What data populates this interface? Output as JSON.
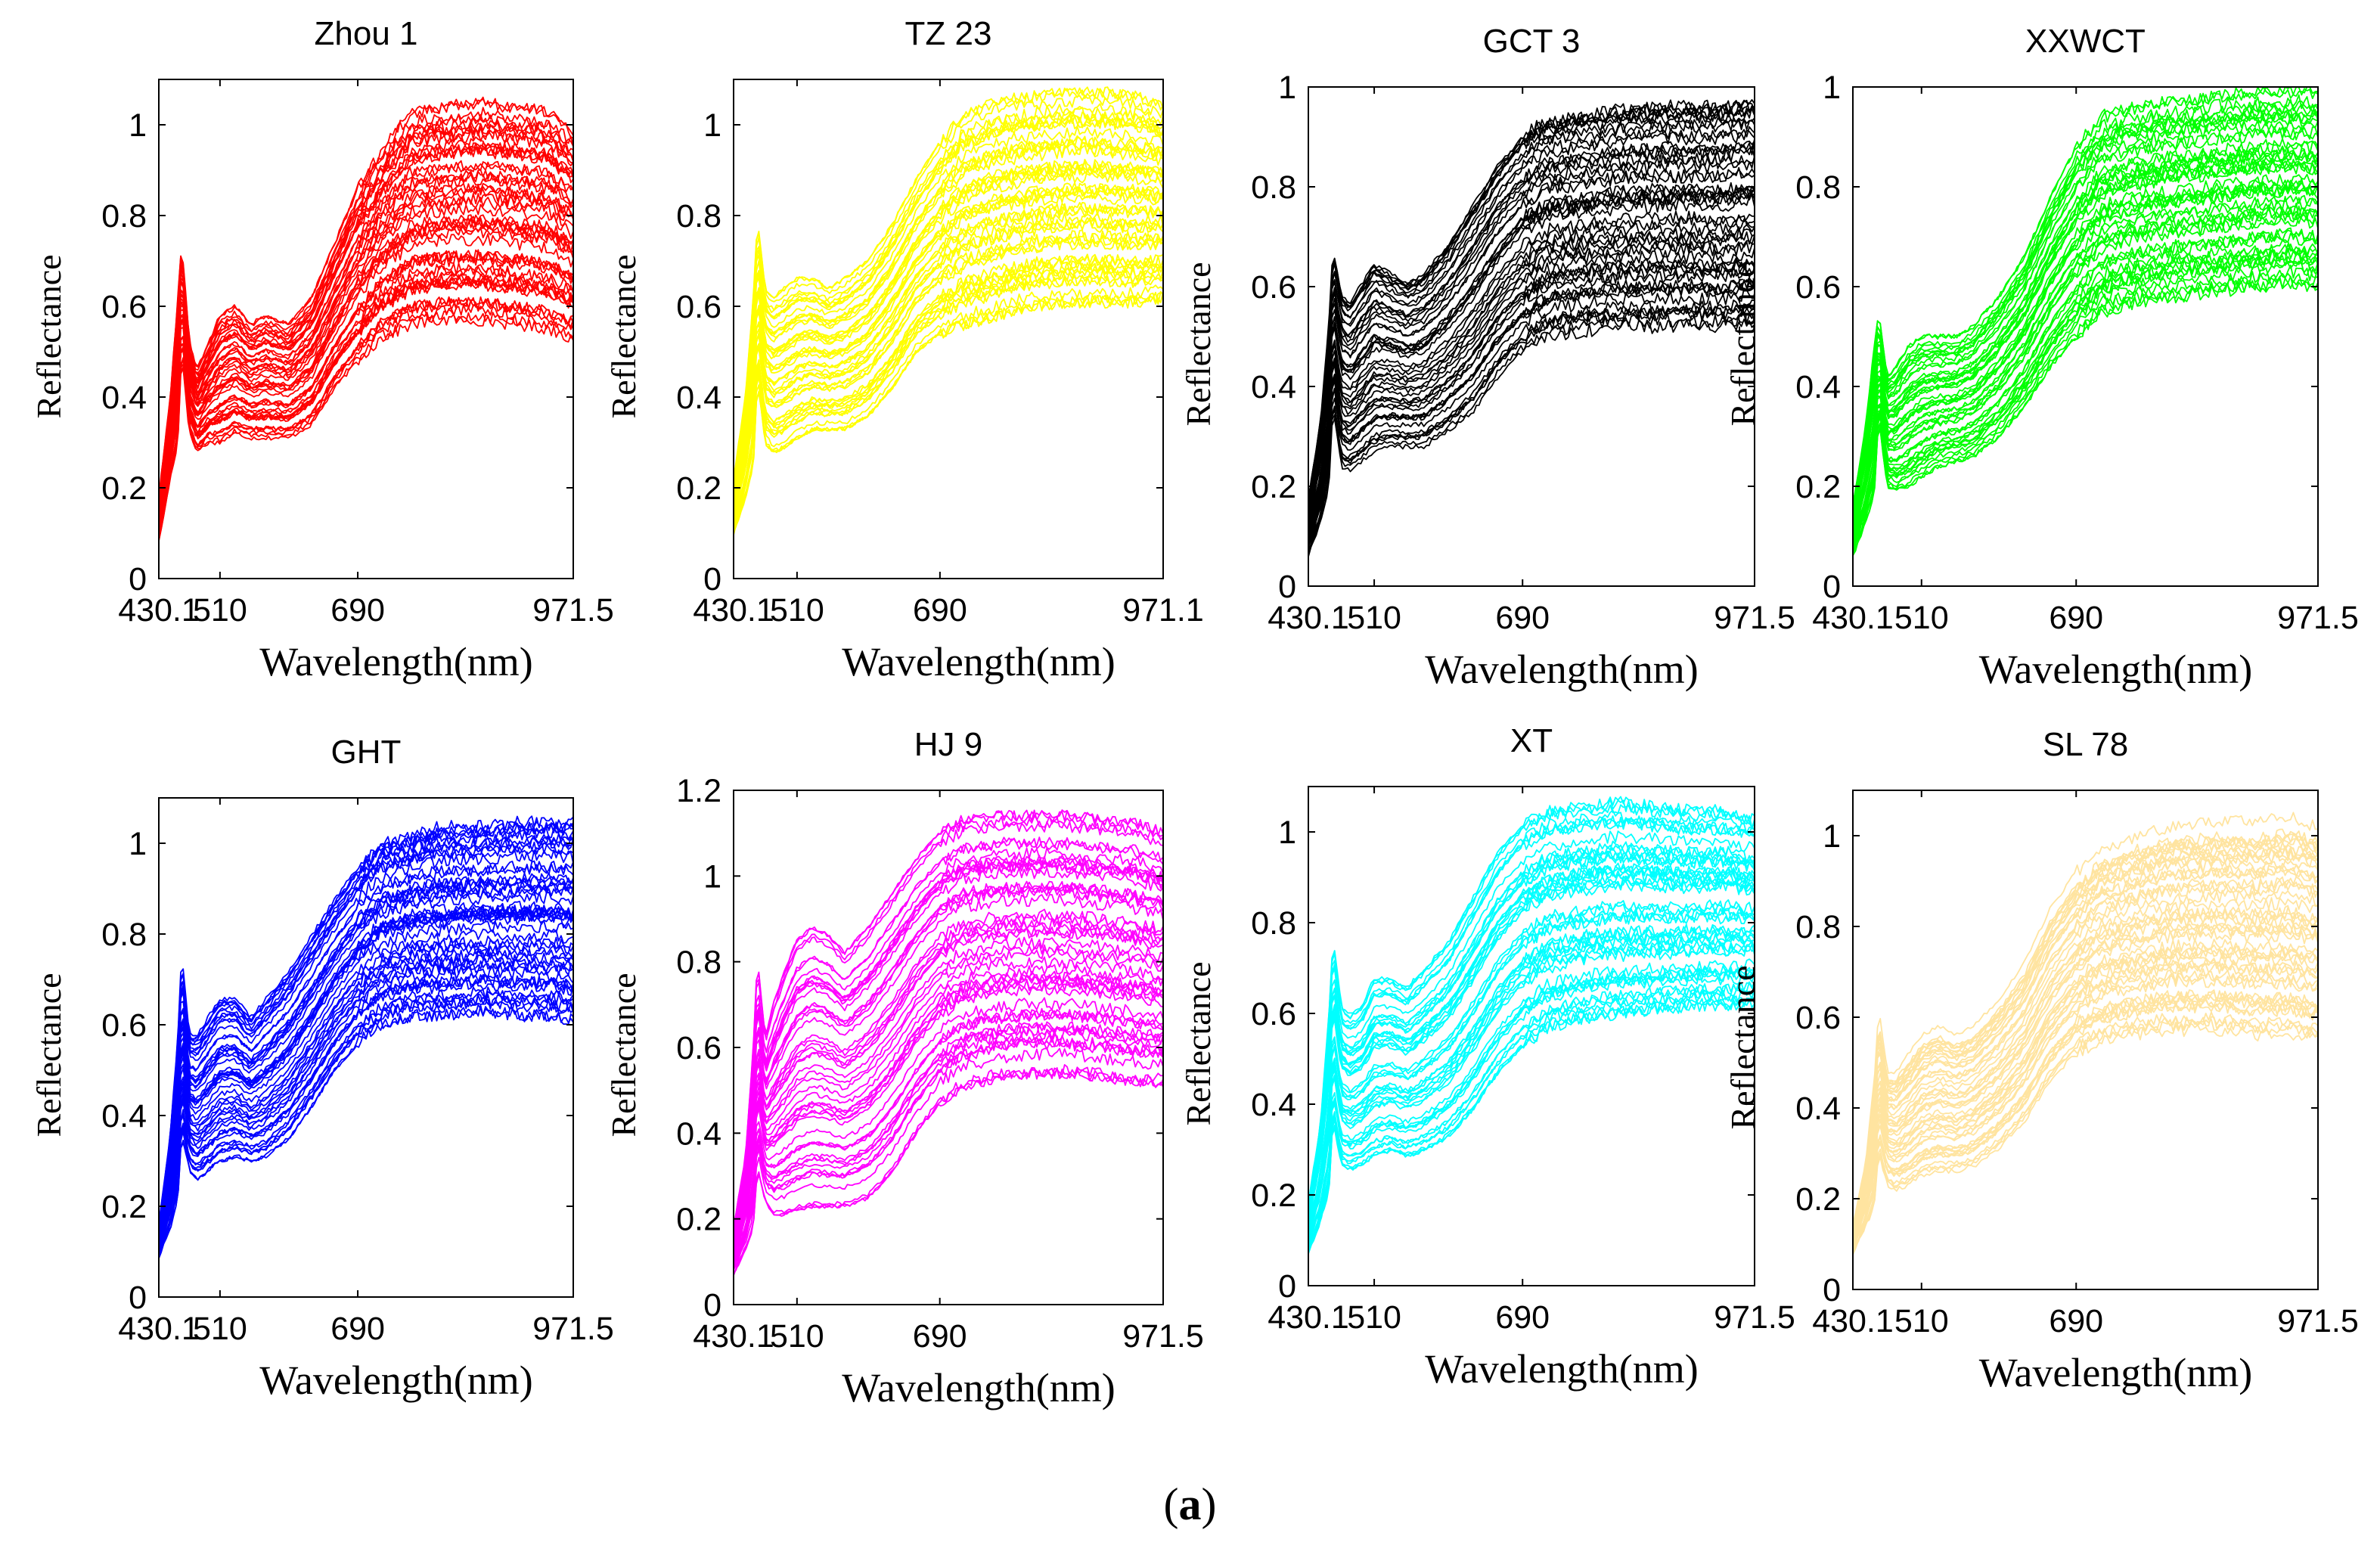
{
  "caption": {
    "open": "(",
    "letter": "a",
    "close": ")"
  },
  "chart_data": [
    {
      "type": "line",
      "title": "Zhou 1",
      "color": "#ff0000",
      "xlabel": "Wavelength(nm)",
      "ylabel": "Reflectance",
      "x_ticks": [
        "430.1",
        "510",
        "690",
        "971.5"
      ],
      "x_tick_values": [
        430.1,
        510,
        690,
        971.5
      ],
      "xlim": [
        430.1,
        971.5
      ],
      "ylim": [
        0,
        1.1
      ],
      "y_ticks": [
        0,
        0.2,
        0.4,
        0.6,
        0.8,
        1
      ],
      "y_tick_labels": [
        "0",
        "0.2",
        "0.4",
        "0.6",
        "0.8",
        "1"
      ],
      "series_count": 50,
      "x": [
        430.1,
        445,
        455,
        460,
        470,
        480,
        495,
        510,
        530,
        550,
        570,
        600,
        630,
        660,
        690,
        720,
        760,
        800,
        850,
        900,
        940,
        971.5
      ],
      "envelope_low": [
        0.08,
        0.22,
        0.3,
        0.5,
        0.32,
        0.28,
        0.3,
        0.3,
        0.32,
        0.31,
        0.31,
        0.31,
        0.34,
        0.42,
        0.48,
        0.53,
        0.56,
        0.57,
        0.57,
        0.56,
        0.55,
        0.53
      ],
      "envelope_high": [
        0.18,
        0.4,
        0.62,
        0.74,
        0.52,
        0.46,
        0.52,
        0.58,
        0.6,
        0.56,
        0.58,
        0.56,
        0.62,
        0.74,
        0.86,
        0.94,
        1.03,
        1.04,
        1.05,
        1.04,
        1.03,
        0.98
      ]
    },
    {
      "type": "line",
      "title": "TZ 23",
      "color": "#ffff00",
      "xlabel": "Wavelength(nm)",
      "ylabel": "Reflectance",
      "x_ticks": [
        "430.1",
        "510",
        "690",
        "971.1"
      ],
      "x_tick_values": [
        430.1,
        510,
        690,
        971.1
      ],
      "xlim": [
        430.1,
        971.1
      ],
      "ylim": [
        0,
        1.1
      ],
      "y_ticks": [
        0,
        0.2,
        0.4,
        0.6,
        0.8,
        1
      ],
      "y_tick_labels": [
        "0",
        "0.2",
        "0.4",
        "0.6",
        "0.8",
        "1"
      ],
      "series_count": 50,
      "x": [
        430.1,
        445,
        455,
        460,
        470,
        480,
        495,
        510,
        530,
        550,
        570,
        600,
        630,
        660,
        690,
        720,
        760,
        800,
        850,
        900,
        940,
        971.1
      ],
      "envelope_low": [
        0.1,
        0.18,
        0.25,
        0.44,
        0.3,
        0.28,
        0.29,
        0.31,
        0.33,
        0.33,
        0.33,
        0.36,
        0.42,
        0.5,
        0.54,
        0.56,
        0.58,
        0.6,
        0.61,
        0.61,
        0.61,
        0.62
      ],
      "envelope_high": [
        0.22,
        0.4,
        0.62,
        0.79,
        0.64,
        0.62,
        0.64,
        0.66,
        0.66,
        0.64,
        0.66,
        0.7,
        0.78,
        0.88,
        0.96,
        1.02,
        1.05,
        1.06,
        1.07,
        1.07,
        1.06,
        1.04
      ]
    },
    {
      "type": "line",
      "title": "GCT 3",
      "color": "#000000",
      "xlabel": "Wavelength(nm)",
      "ylabel": "Reflectance",
      "x_ticks": [
        "430.1",
        "510",
        "690",
        "971.5"
      ],
      "x_tick_values": [
        430.1,
        510,
        690,
        971.5
      ],
      "xlim": [
        430.1,
        971.5
      ],
      "ylim": [
        0,
        1
      ],
      "y_ticks": [
        0,
        0.2,
        0.4,
        0.6,
        0.8,
        1
      ],
      "y_tick_labels": [
        "0",
        "0.2",
        "0.4",
        "0.6",
        "0.8",
        "1"
      ],
      "series_count": 50,
      "x": [
        430.1,
        445,
        455,
        460,
        470,
        480,
        495,
        510,
        530,
        550,
        570,
        600,
        630,
        660,
        690,
        720,
        760,
        800,
        850,
        900,
        940,
        971.5
      ],
      "envelope_low": [
        0.06,
        0.13,
        0.2,
        0.36,
        0.24,
        0.23,
        0.25,
        0.27,
        0.28,
        0.28,
        0.28,
        0.31,
        0.35,
        0.42,
        0.47,
        0.5,
        0.51,
        0.52,
        0.52,
        0.52,
        0.52,
        0.53
      ],
      "envelope_high": [
        0.18,
        0.34,
        0.54,
        0.69,
        0.6,
        0.58,
        0.62,
        0.66,
        0.64,
        0.62,
        0.64,
        0.7,
        0.78,
        0.86,
        0.92,
        0.95,
        0.96,
        0.97,
        0.98,
        0.98,
        0.98,
        0.99
      ]
    },
    {
      "type": "line",
      "title": "XXWCT",
      "color": "#00ff00",
      "xlabel": "Wavelength(nm)",
      "ylabel": "Reflectance",
      "x_ticks": [
        "430.1",
        "510",
        "690",
        "971.5"
      ],
      "x_tick_values": [
        430.1,
        510,
        690,
        971.5
      ],
      "xlim": [
        430.1,
        971.5
      ],
      "ylim": [
        0,
        1
      ],
      "y_ticks": [
        0,
        0.2,
        0.4,
        0.6,
        0.8,
        1
      ],
      "y_tick_labels": [
        "0",
        "0.2",
        "0.4",
        "0.6",
        "0.8",
        "1"
      ],
      "series_count": 50,
      "x": [
        430.1,
        445,
        455,
        460,
        470,
        480,
        495,
        510,
        530,
        550,
        570,
        600,
        630,
        660,
        690,
        720,
        760,
        800,
        850,
        900,
        940,
        971.5
      ],
      "envelope_low": [
        0.06,
        0.13,
        0.18,
        0.34,
        0.2,
        0.19,
        0.2,
        0.22,
        0.24,
        0.25,
        0.26,
        0.3,
        0.36,
        0.44,
        0.5,
        0.55,
        0.57,
        0.58,
        0.59,
        0.6,
        0.61,
        0.6
      ],
      "envelope_high": [
        0.16,
        0.32,
        0.48,
        0.55,
        0.42,
        0.44,
        0.48,
        0.5,
        0.5,
        0.5,
        0.52,
        0.58,
        0.66,
        0.78,
        0.88,
        0.94,
        0.96,
        0.97,
        0.98,
        0.99,
        0.99,
        0.99
      ]
    },
    {
      "type": "line",
      "title": "GHT",
      "color": "#0000ff",
      "xlabel": "Wavelength(nm)",
      "ylabel": "Reflectance",
      "x_ticks": [
        "430.1",
        "510",
        "690",
        "971.5"
      ],
      "x_tick_values": [
        430.1,
        510,
        690,
        971.5
      ],
      "xlim": [
        430.1,
        971.5
      ],
      "ylim": [
        0,
        1.1
      ],
      "y_ticks": [
        0,
        0.2,
        0.4,
        0.6,
        0.8,
        1
      ],
      "y_tick_labels": [
        "0",
        "0.2",
        "0.4",
        "0.6",
        "0.8",
        "1"
      ],
      "series_count": 50,
      "x": [
        430.1,
        445,
        455,
        460,
        470,
        480,
        495,
        510,
        530,
        550,
        570,
        600,
        630,
        660,
        690,
        720,
        760,
        800,
        850,
        900,
        940,
        971.5
      ],
      "envelope_low": [
        0.09,
        0.15,
        0.22,
        0.36,
        0.28,
        0.26,
        0.28,
        0.3,
        0.31,
        0.3,
        0.31,
        0.35,
        0.42,
        0.5,
        0.56,
        0.6,
        0.62,
        0.62,
        0.63,
        0.62,
        0.62,
        0.61
      ],
      "envelope_high": [
        0.16,
        0.36,
        0.58,
        0.76,
        0.58,
        0.58,
        0.62,
        0.66,
        0.66,
        0.62,
        0.66,
        0.72,
        0.8,
        0.88,
        0.95,
        1.0,
        1.02,
        1.04,
        1.04,
        1.05,
        1.05,
        1.05
      ]
    },
    {
      "type": "line",
      "title": "HJ 9",
      "color": "#ff00ff",
      "xlabel": "Wavelength(nm)",
      "ylabel": "Reflectance",
      "x_ticks": [
        "430.1",
        "510",
        "690",
        "971.5"
      ],
      "x_tick_values": [
        430.1,
        510,
        690,
        971.5
      ],
      "xlim": [
        430.1,
        971.5
      ],
      "ylim": [
        0,
        1.2
      ],
      "y_ticks": [
        0,
        0.2,
        0.4,
        0.6,
        0.8,
        1,
        1.2
      ],
      "y_tick_labels": [
        "0",
        "0.2",
        "0.4",
        "0.6",
        "0.8",
        "1",
        "1.2"
      ],
      "series_count": 50,
      "x": [
        430.1,
        445,
        455,
        460,
        470,
        480,
        495,
        510,
        530,
        550,
        570,
        600,
        630,
        660,
        690,
        720,
        760,
        800,
        850,
        900,
        940,
        971.5
      ],
      "envelope_low": [
        0.07,
        0.13,
        0.18,
        0.32,
        0.24,
        0.21,
        0.21,
        0.22,
        0.23,
        0.23,
        0.23,
        0.25,
        0.31,
        0.4,
        0.47,
        0.51,
        0.53,
        0.54,
        0.54,
        0.53,
        0.52,
        0.52
      ],
      "envelope_high": [
        0.18,
        0.34,
        0.6,
        0.81,
        0.62,
        0.7,
        0.78,
        0.85,
        0.88,
        0.86,
        0.82,
        0.88,
        0.96,
        1.04,
        1.1,
        1.13,
        1.14,
        1.14,
        1.14,
        1.13,
        1.12,
        1.1
      ]
    },
    {
      "type": "line",
      "title": "XT",
      "color": "#00ffff",
      "xlabel": "Wavelength(nm)",
      "ylabel": "Reflectance",
      "x_ticks": [
        "430.1",
        "510",
        "690",
        "971.5"
      ],
      "x_tick_values": [
        430.1,
        510,
        690,
        971.5
      ],
      "xlim": [
        430.1,
        971.5
      ],
      "ylim": [
        0,
        1.1
      ],
      "y_ticks": [
        0,
        0.2,
        0.4,
        0.6,
        0.8,
        1
      ],
      "y_tick_labels": [
        "0",
        "0.2",
        "0.4",
        "0.6",
        "0.8",
        "1"
      ],
      "series_count": 50,
      "x": [
        430.1,
        445,
        455,
        460,
        470,
        480,
        495,
        510,
        530,
        550,
        570,
        600,
        630,
        660,
        690,
        720,
        760,
        800,
        850,
        900,
        940,
        971.5
      ],
      "envelope_low": [
        0.07,
        0.14,
        0.2,
        0.36,
        0.26,
        0.25,
        0.26,
        0.28,
        0.29,
        0.28,
        0.29,
        0.32,
        0.38,
        0.46,
        0.52,
        0.56,
        0.58,
        0.59,
        0.6,
        0.61,
        0.61,
        0.62
      ],
      "envelope_high": [
        0.18,
        0.36,
        0.6,
        0.77,
        0.62,
        0.6,
        0.62,
        0.68,
        0.68,
        0.66,
        0.7,
        0.76,
        0.86,
        0.96,
        1.02,
        1.05,
        1.06,
        1.07,
        1.06,
        1.05,
        1.05,
        1.03
      ]
    },
    {
      "type": "line",
      "title": "SL 78",
      "color": "#ffe4a0",
      "xlabel": "Wavelength(nm)",
      "ylabel": "Reflectance",
      "x_ticks": [
        "430.1",
        "510",
        "690",
        "971.5"
      ],
      "x_tick_values": [
        430.1,
        510,
        690,
        971.5
      ],
      "xlim": [
        430.1,
        971.5
      ],
      "ylim": [
        0,
        1.1
      ],
      "y_ticks": [
        0,
        0.2,
        0.4,
        0.6,
        0.8,
        1
      ],
      "y_tick_labels": [
        "0",
        "0.2",
        "0.4",
        "0.6",
        "0.8",
        "1"
      ],
      "series_count": 50,
      "x": [
        430.1,
        445,
        455,
        460,
        470,
        480,
        495,
        510,
        530,
        550,
        570,
        600,
        630,
        660,
        690,
        720,
        760,
        800,
        850,
        900,
        940,
        971.5
      ],
      "envelope_low": [
        0.08,
        0.14,
        0.18,
        0.3,
        0.23,
        0.22,
        0.23,
        0.25,
        0.26,
        0.26,
        0.27,
        0.31,
        0.37,
        0.46,
        0.52,
        0.55,
        0.56,
        0.57,
        0.57,
        0.56,
        0.56,
        0.55
      ],
      "envelope_high": [
        0.14,
        0.28,
        0.46,
        0.62,
        0.48,
        0.48,
        0.52,
        0.56,
        0.58,
        0.56,
        0.58,
        0.64,
        0.72,
        0.84,
        0.92,
        0.97,
        1.0,
        1.02,
        1.03,
        1.03,
        1.04,
        1.02
      ]
    }
  ]
}
